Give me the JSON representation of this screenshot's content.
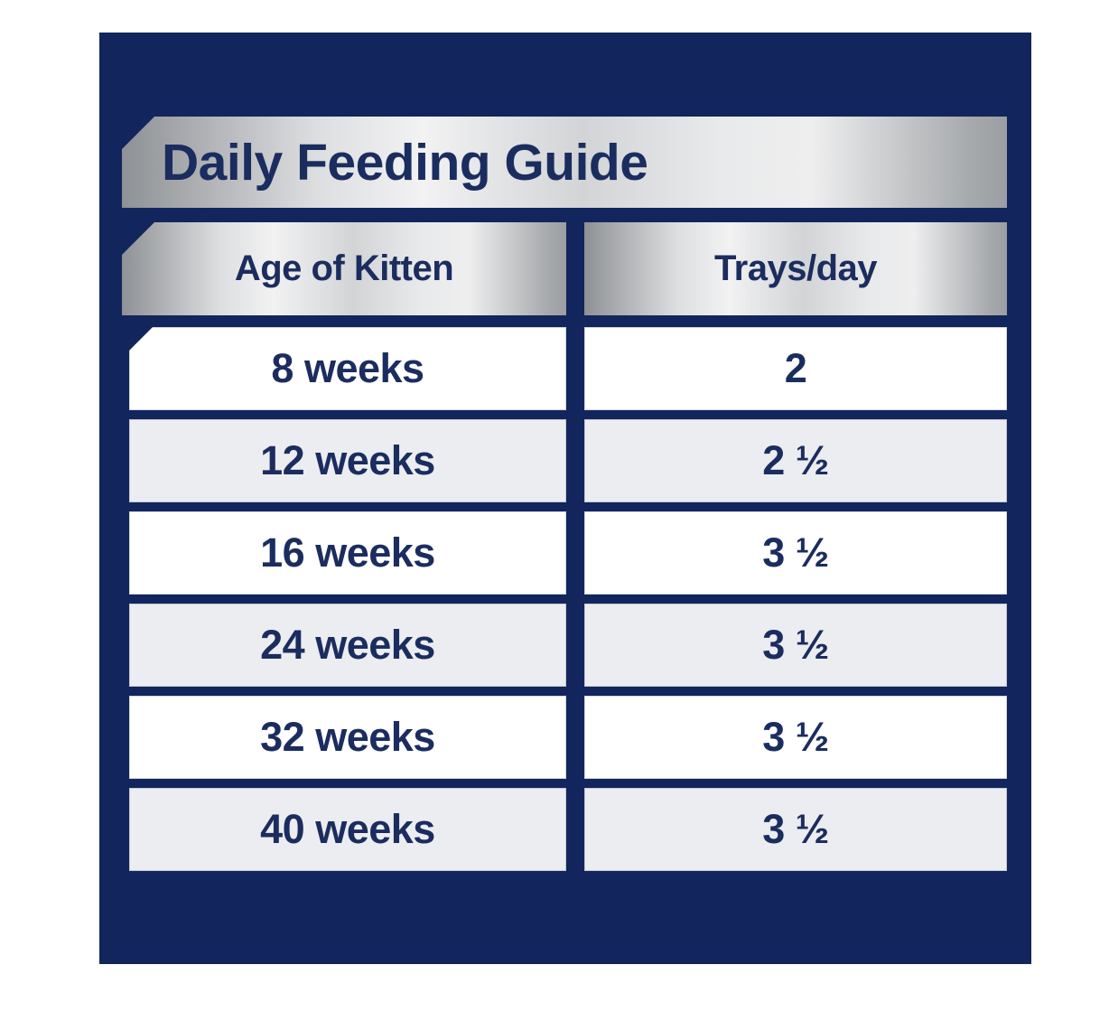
{
  "chart_data": {
    "type": "table",
    "title": "Daily Feeding Guide",
    "columns": [
      "Age of Kitten",
      "Trays/day"
    ],
    "rows": [
      [
        "8 weeks",
        "2"
      ],
      [
        "12 weeks",
        "2 ½"
      ],
      [
        "16 weeks",
        "3 ½"
      ],
      [
        "24 weeks",
        "3 ½"
      ],
      [
        "32 weeks",
        "3 ½"
      ],
      [
        "40 weeks",
        "3 ½"
      ]
    ],
    "layout_hints": {
      "row_striping": "white / light-gray alternating",
      "header_style": "metallic silver gradient banners",
      "notched_corners": "top-left diagonal cut on title banner, left header band and first data row"
    }
  },
  "colors": {
    "panel_navy": "#12255c",
    "text_navy": "#1b2d5f",
    "row_white": "#ffffff",
    "row_gray": "#ecedf0",
    "silver_light": "#f2f2f3",
    "silver_dark": "#8e9195",
    "page_background": "#ffffff"
  }
}
